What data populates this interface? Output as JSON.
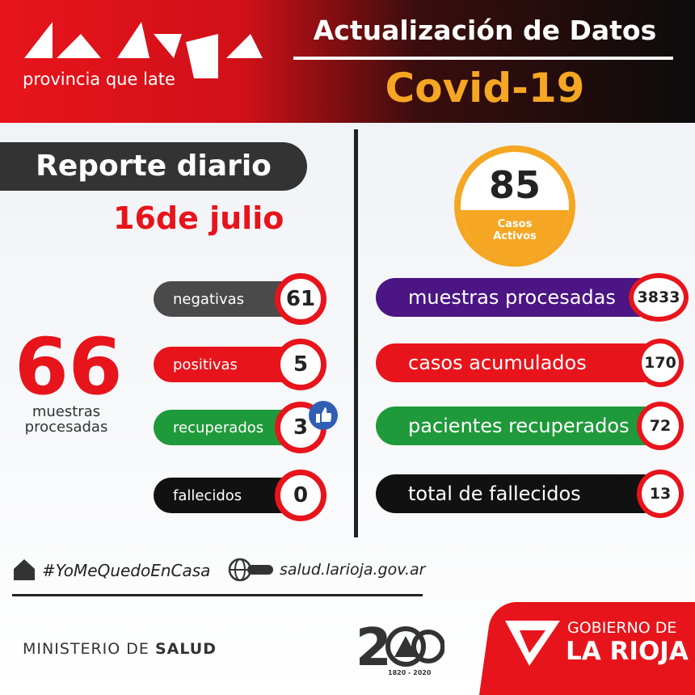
{
  "header": {
    "logo_subtitle": "provincia que late",
    "title": "Actualización de Datos",
    "subtitle": "Covid-19"
  },
  "report": {
    "title": "Reporte diario",
    "date": "16de julio"
  },
  "total": {
    "value": 66,
    "label": "muestras procesadas"
  },
  "daily": [
    {
      "label": "negativas",
      "value": 61,
      "color": "#4a4a4a"
    },
    {
      "label": "positivas",
      "value": 5,
      "color": "#e8141b"
    },
    {
      "label": "recuperados",
      "value": 3,
      "color": "#1f9a3a"
    },
    {
      "label": "fallecidos",
      "value": 0,
      "color": "#111111"
    }
  ],
  "active": {
    "value": 85,
    "label": "Casos Activos"
  },
  "cumulative": [
    {
      "label": "muestras procesadas",
      "value": 3833,
      "color": "#4b1583"
    },
    {
      "label": "casos acumulados",
      "value": 170,
      "color": "#e8141b"
    },
    {
      "label": "pacientes recuperados",
      "value": 72,
      "color": "#1f9a3a"
    },
    {
      "label": "total de fallecidos",
      "value": 13,
      "color": "#111111"
    }
  ],
  "footer": {
    "hashtag": "#YoMeQuedoEnCasa",
    "website": "salud.larioja.gov.ar",
    "ministry": "MINISTERIO DE",
    "ministry_bold": "SALUD",
    "anniversary": "1820 - 2020",
    "government": "GOBIERNO DE",
    "province": "LA RIOJA"
  }
}
